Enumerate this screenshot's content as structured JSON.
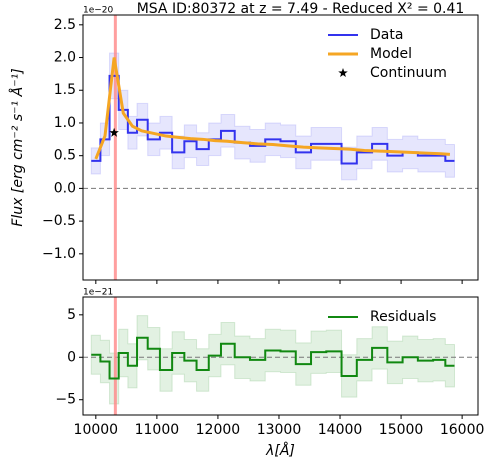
{
  "chart_data": [
    {
      "type": "line",
      "title": "MSA ID:80372 at z = 7.49 - Reduced X² = 0.41",
      "y_label": "Flux [erg cm⁻² s⁻¹ Å⁻¹]",
      "offset_label": "1e−20",
      "x": [
        10000,
        10150,
        10300,
        10450,
        10600,
        10750,
        10950,
        11150,
        11350,
        11550,
        11750,
        11950,
        12150,
        12400,
        12650,
        12900,
        13150,
        13400,
        13650,
        13900,
        14150,
        14400,
        14650,
        14900,
        15150,
        15400,
        15650,
        15800
      ],
      "series": [
        {
          "name": "Data",
          "color": "#3333ee",
          "style": "step",
          "values": [
            0.42,
            0.75,
            1.72,
            1.2,
            0.85,
            1.05,
            0.75,
            0.85,
            0.55,
            0.72,
            0.6,
            0.75,
            0.88,
            0.7,
            0.65,
            0.75,
            0.72,
            0.55,
            0.68,
            0.68,
            0.38,
            0.55,
            0.68,
            0.5,
            0.55,
            0.5,
            0.5,
            0.42
          ],
          "errors": [
            0.2,
            0.25,
            0.35,
            0.3,
            0.25,
            0.25,
            0.25,
            0.25,
            0.25,
            0.25,
            0.25,
            0.25,
            0.25,
            0.25,
            0.25,
            0.25,
            0.25,
            0.25,
            0.25,
            0.25,
            0.25,
            0.25,
            0.25,
            0.25,
            0.25,
            0.25,
            0.25,
            0.25
          ]
        },
        {
          "name": "Model",
          "color": "#f5a623",
          "style": "line",
          "values": [
            0.45,
            0.8,
            2.0,
            1.15,
            0.95,
            0.88,
            0.84,
            0.8,
            0.78,
            0.76,
            0.75,
            0.73,
            0.72,
            0.7,
            0.68,
            0.67,
            0.65,
            0.63,
            0.62,
            0.61,
            0.6,
            0.58,
            0.57,
            0.56,
            0.55,
            0.54,
            0.53,
            0.52
          ]
        },
        {
          "name": "Continuum",
          "color": "#000000",
          "style": "marker",
          "x": [
            10300
          ],
          "values": [
            0.85
          ]
        }
      ],
      "xlim": [
        9790,
        16260
      ],
      "ylim": [
        -1.4,
        2.65
      ],
      "yticks": [
        {
          "value": -1,
          "label": "−1.0"
        },
        {
          "value": -0.5,
          "label": "−0.5"
        },
        {
          "value": 0,
          "label": "0.0"
        },
        0.5,
        {
          "value": 1,
          "label": "1.0"
        },
        1.5,
        {
          "value": 2,
          "label": "2.0"
        },
        2.5
      ],
      "hline": 0,
      "vline": 10320,
      "legend": "upper right"
    },
    {
      "type": "line",
      "x_label": "λ[Å]",
      "offset_label": "1e−21",
      "x": [
        10000,
        10150,
        10300,
        10450,
        10600,
        10750,
        10950,
        11150,
        11350,
        11550,
        11750,
        11950,
        12150,
        12400,
        12650,
        12900,
        13150,
        13400,
        13650,
        13900,
        14150,
        14400,
        14650,
        14900,
        15150,
        15400,
        15650,
        15800
      ],
      "series": [
        {
          "name": "Residuals",
          "color": "#118811",
          "style": "step",
          "values": [
            0.3,
            -0.5,
            -2.5,
            0.5,
            -1,
            2.3,
            1,
            -1.5,
            0.5,
            -0.4,
            -1.5,
            0.2,
            1.6,
            0,
            -0.3,
            0.8,
            0.7,
            -0.8,
            0.6,
            0.7,
            -2.2,
            -0.3,
            1.1,
            -0.6,
            0,
            -0.4,
            -0.3,
            -1
          ],
          "errors": [
            2.3,
            2.5,
            3,
            2.8,
            2.6,
            2.6,
            2.5,
            2.5,
            2.5,
            2.5,
            2.5,
            2.5,
            2.5,
            2.5,
            2.5,
            2.5,
            2.5,
            2.5,
            2.5,
            2.5,
            2.5,
            2.5,
            2.5,
            2.5,
            2.5,
            2.5,
            2.5,
            2.5
          ]
        }
      ],
      "xlim": [
        9790,
        16260
      ],
      "ylim": [
        -6.8,
        7.1
      ],
      "xticks": [
        10000,
        11000,
        12000,
        13000,
        14000,
        15000,
        16000
      ],
      "yticks": [
        {
          "value": -5,
          "label": "−5"
        },
        0,
        5
      ],
      "hline": 0,
      "vline": 10320,
      "legend": "upper right"
    }
  ]
}
